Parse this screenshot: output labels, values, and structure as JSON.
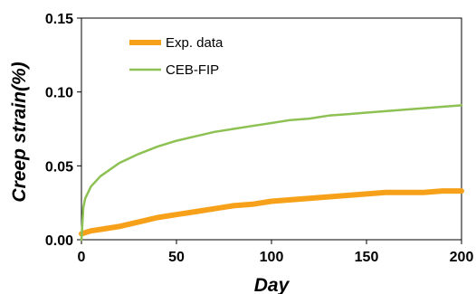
{
  "chart_data": {
    "type": "line",
    "xlabel": "Day",
    "ylabel": "Creep strain(%)",
    "xlim": [
      0,
      200
    ],
    "ylim": [
      0,
      0.15
    ],
    "x_ticks": [
      "0",
      "50",
      "100",
      "150",
      "200"
    ],
    "y_ticks": [
      "0.00",
      "0.05",
      "0.10",
      "0.15"
    ],
    "legend_position": "top-left",
    "grid": false,
    "series": [
      {
        "name": "Exp. data",
        "color": "#F7A11A",
        "x": [
          0,
          5,
          10,
          20,
          30,
          40,
          50,
          60,
          70,
          80,
          90,
          100,
          110,
          120,
          130,
          140,
          150,
          160,
          170,
          180,
          190,
          200
        ],
        "values": [
          0.004,
          0.006,
          0.007,
          0.009,
          0.012,
          0.015,
          0.017,
          0.019,
          0.021,
          0.023,
          0.024,
          0.026,
          0.027,
          0.028,
          0.029,
          0.03,
          0.031,
          0.032,
          0.032,
          0.032,
          0.033,
          0.033
        ]
      },
      {
        "name": "CEB-FIP",
        "color": "#8DC153",
        "x": [
          0,
          1,
          2,
          5,
          10,
          20,
          30,
          40,
          50,
          60,
          70,
          80,
          90,
          100,
          110,
          120,
          130,
          140,
          150,
          160,
          170,
          180,
          190,
          200
        ],
        "values": [
          0.0,
          0.022,
          0.028,
          0.036,
          0.043,
          0.052,
          0.058,
          0.063,
          0.067,
          0.07,
          0.073,
          0.075,
          0.077,
          0.079,
          0.081,
          0.082,
          0.084,
          0.085,
          0.086,
          0.087,
          0.088,
          0.089,
          0.09,
          0.091
        ]
      }
    ]
  }
}
